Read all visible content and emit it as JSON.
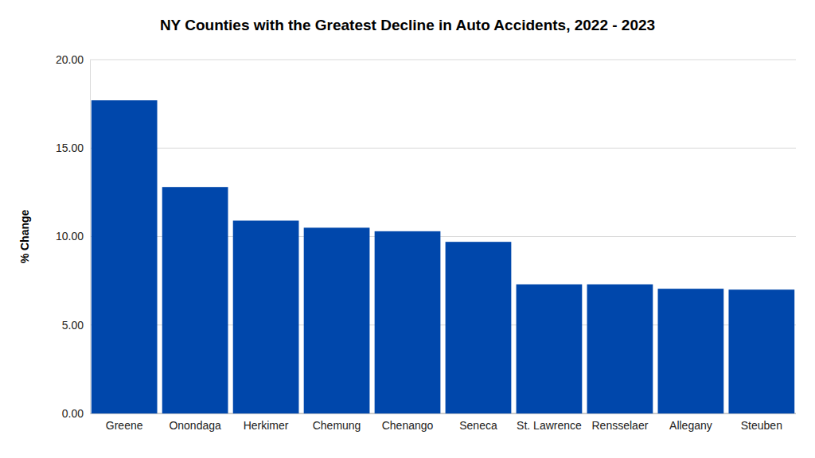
{
  "chart_data": {
    "type": "bar",
    "title": "NY Counties with the Greatest Decline in Auto Accidents, 2022 - 2023",
    "ylabel": "% Change",
    "categories": [
      "Greene",
      "Onondaga",
      "Herkimer",
      "Chemung",
      "Chenango",
      "Seneca",
      "St. Lawrence",
      "Rensselaer",
      "Allegany",
      "Steuben"
    ],
    "values": [
      17.7,
      12.8,
      10.9,
      10.5,
      10.3,
      9.7,
      7.3,
      7.3,
      7.05,
      7.0
    ],
    "color": "#0047ab",
    "ylim": [
      0,
      20
    ],
    "yticks": [
      {
        "value": 0,
        "label": "0.00"
      },
      {
        "value": 5,
        "label": "5.00"
      },
      {
        "value": 10,
        "label": "10.00"
      },
      {
        "value": 15,
        "label": "15.00"
      },
      {
        "value": 20,
        "label": "20.00"
      }
    ],
    "grid": true
  }
}
